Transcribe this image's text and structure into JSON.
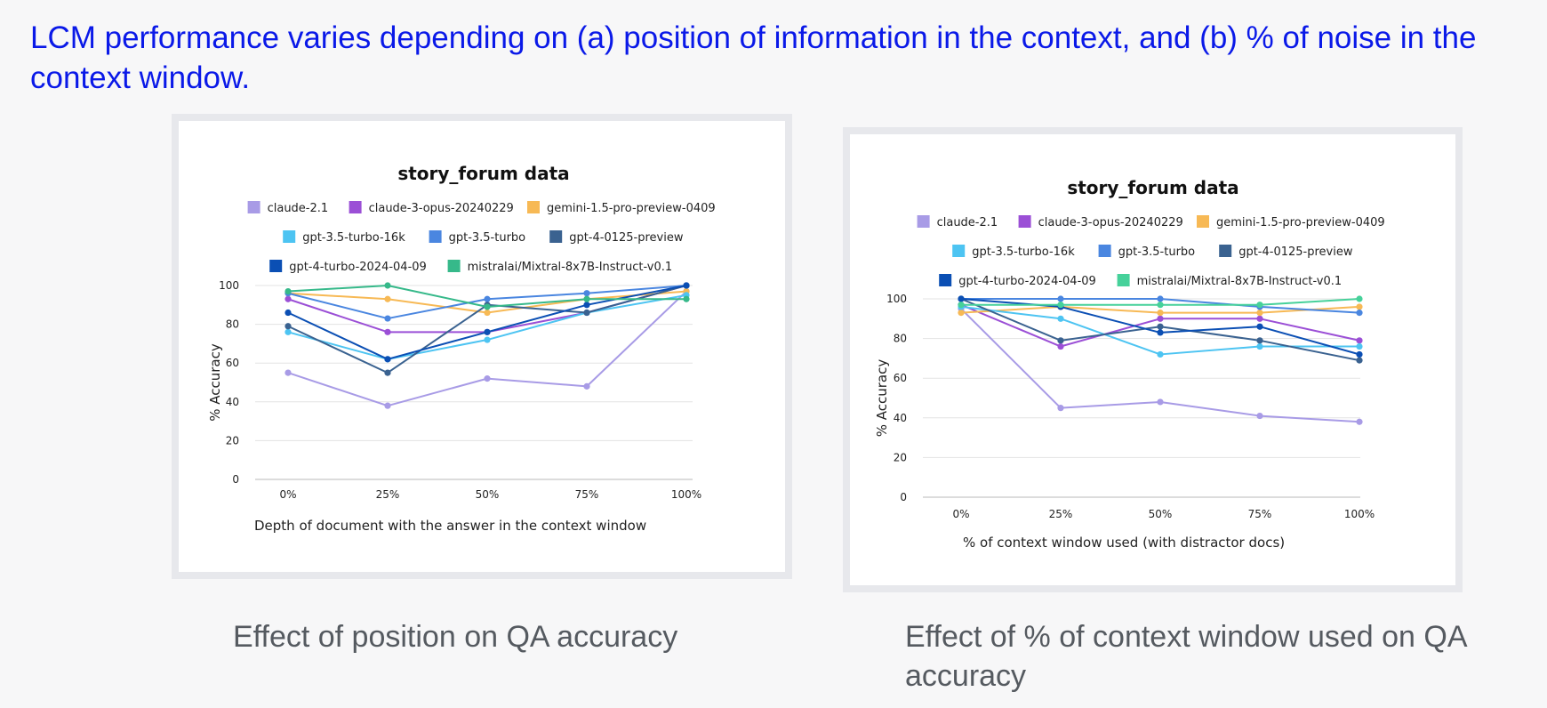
{
  "slide": {
    "title": "LCM performance varies depending on (a) position of information in the context, and (b) % of noise in the context window.",
    "caption_left": "Effect of position on QA accuracy",
    "caption_right": "Effect of % of context window used on QA accuracy"
  },
  "chart_data": [
    {
      "type": "line",
      "title": "story_forum data",
      "xlabel": "Depth of document with the answer in the context window",
      "ylabel": "% Accuracy",
      "categories": [
        "0%",
        "25%",
        "50%",
        "75%",
        "100%"
      ],
      "ylim": [
        0,
        100
      ],
      "yticks": [
        0,
        20,
        40,
        60,
        80,
        100
      ],
      "grid": "horizontal",
      "legend": "top",
      "series": [
        {
          "name": "claude-2.1",
          "color": "#a89be6",
          "values": [
            55,
            38,
            52,
            48,
            97
          ]
        },
        {
          "name": "claude-3-opus-20240229",
          "color": "#9b4fd6",
          "values": [
            93,
            76,
            76,
            86,
            100
          ]
        },
        {
          "name": "gemini-1.5-pro-preview-0409",
          "color": "#f7b955",
          "values": [
            96,
            93,
            86,
            93,
            97
          ]
        },
        {
          "name": "gpt-3.5-turbo-16k",
          "color": "#4dc4f2",
          "values": [
            76,
            62,
            72,
            86,
            95
          ]
        },
        {
          "name": "gpt-3.5-turbo",
          "color": "#4a86e0",
          "values": [
            96,
            83,
            93,
            96,
            100
          ]
        },
        {
          "name": "gpt-4-0125-preview",
          "color": "#3a6290",
          "values": [
            79,
            55,
            90,
            86,
            100
          ]
        },
        {
          "name": "gpt-4-turbo-2024-04-09",
          "color": "#0b4fb4",
          "values": [
            86,
            62,
            76,
            90,
            100
          ]
        },
        {
          "name": "mistralai/Mixtral-8x7B-Instruct-v0.1",
          "color": "#36b98a",
          "values": [
            97,
            100,
            89,
            93,
            93
          ]
        }
      ]
    },
    {
      "type": "line",
      "title": "story_forum data",
      "xlabel": "% of context window used (with distractor docs)",
      "ylabel": "% Accuracy",
      "categories": [
        "0%",
        "25%",
        "50%",
        "75%",
        "100%"
      ],
      "ylim": [
        0,
        100
      ],
      "yticks": [
        0,
        20,
        40,
        60,
        80,
        100
      ],
      "grid": "horizontal",
      "legend": "top",
      "series": [
        {
          "name": "claude-2.1",
          "color": "#a89be6",
          "values": [
            95,
            45,
            48,
            41,
            38
          ]
        },
        {
          "name": "claude-3-opus-20240229",
          "color": "#9b4fd6",
          "values": [
            97,
            76,
            90,
            90,
            79
          ]
        },
        {
          "name": "gemini-1.5-pro-preview-0409",
          "color": "#f7b955",
          "values": [
            93,
            96,
            93,
            93,
            96
          ]
        },
        {
          "name": "gpt-3.5-turbo-16k",
          "color": "#4dc4f2",
          "values": [
            96,
            90,
            72,
            76,
            76
          ]
        },
        {
          "name": "gpt-3.5-turbo",
          "color": "#4a86e0",
          "values": [
            100,
            100,
            100,
            96,
            93
          ]
        },
        {
          "name": "gpt-4-0125-preview",
          "color": "#3a6290",
          "values": [
            100,
            79,
            86,
            79,
            69
          ]
        },
        {
          "name": "gpt-4-turbo-2024-04-09",
          "color": "#0b4fb4",
          "values": [
            100,
            96,
            83,
            86,
            72
          ]
        },
        {
          "name": "mistralai/Mixtral-8x7B-Instruct-v0.1",
          "color": "#46d19a",
          "values": [
            97,
            97,
            97,
            97,
            100
          ]
        }
      ]
    }
  ]
}
